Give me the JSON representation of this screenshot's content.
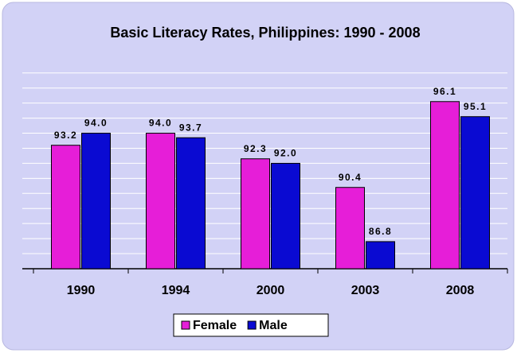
{
  "chart_data": {
    "type": "bar",
    "title": "Basic Literacy Rates, Philippines: 1990 - 2008",
    "categories": [
      "1990",
      "1994",
      "2000",
      "2003",
      "2008"
    ],
    "series": [
      {
        "name": "Female",
        "color": "#e61ed8",
        "values": [
          93.2,
          94.0,
          92.3,
          90.4,
          96.1
        ],
        "value_labels": [
          "93.2",
          "94.0",
          "92.3",
          "90.4",
          "96.1"
        ]
      },
      {
        "name": "Male",
        "color": "#0a0ad2",
        "values": [
          94.0,
          93.7,
          92.0,
          86.8,
          95.1
        ],
        "value_labels": [
          "94.0",
          "93.7",
          "92.0",
          "86.8",
          "95.1"
        ]
      }
    ],
    "ylim": [
      85,
      98.2
    ],
    "yticks": [
      85,
      86,
      87,
      88,
      89,
      90,
      91,
      92,
      93,
      94,
      95,
      96,
      97,
      98
    ],
    "grid": true,
    "legend": "bottom"
  }
}
